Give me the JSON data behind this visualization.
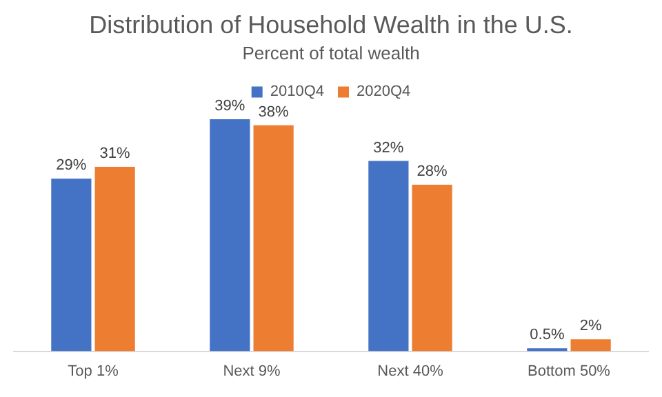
{
  "chart_data": {
    "type": "bar",
    "title": "Distribution of Household Wealth in the U.S.",
    "subtitle": "Percent of total wealth",
    "categories": [
      "Top 1%",
      "Next 9%",
      "Next 40%",
      "Bottom 50%"
    ],
    "legend": "top",
    "grid": false,
    "series": [
      {
        "name": "2010Q4",
        "color": "#4472c4",
        "values": [
          29,
          39,
          32,
          0.5
        ],
        "value_labels": [
          "29%",
          "39%",
          "32%",
          "0.5%"
        ]
      },
      {
        "name": "2020Q4",
        "color": "#ed7d31",
        "values": [
          31,
          38,
          28,
          2
        ],
        "value_labels": [
          "31%",
          "38%",
          "28%",
          "2%"
        ]
      }
    ]
  }
}
